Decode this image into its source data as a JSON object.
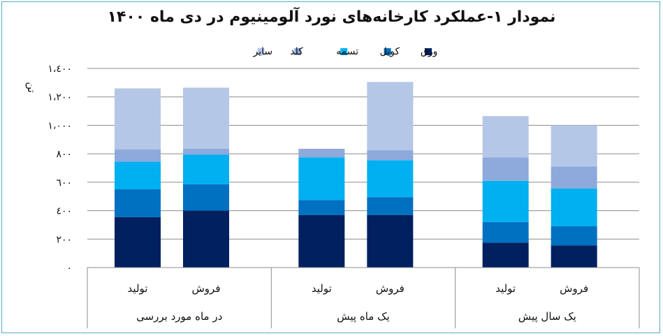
{
  "chart_data": {
    "type": "bar",
    "stacked": true,
    "title": "نمودار ۱-عملکرد کارخانه‌های نورد آلومینیوم در دی ماه ۱۴۰۰",
    "ylabel": "تن",
    "ylim": [
      0,
      1400
    ],
    "yticks": [
      0,
      200,
      400,
      600,
      800,
      1000,
      1200,
      1400
    ],
    "ytick_labels": [
      "٠",
      "٢٠٠",
      "٤٠٠",
      "٦٠٠",
      "٨٠٠",
      "١،٠٠٠",
      "١،٢٠٠",
      "١،٤٠٠"
    ],
    "grid": true,
    "legend_position": "top",
    "groups": [
      {
        "label": "در ماه مورد بررسی",
        "categories": [
          "تولید",
          "فروش"
        ]
      },
      {
        "label": "یک ماه پیش",
        "categories": [
          "تولید",
          "فروش"
        ]
      },
      {
        "label": "یک سال پیش",
        "categories": [
          "تولید",
          "فروش"
        ]
      }
    ],
    "categories": [
      "تولید",
      "فروش",
      "تولید",
      "فروش",
      "تولید",
      "فروش"
    ],
    "series": [
      {
        "name": "ورق",
        "color": "#002060",
        "values": [
          355,
          400,
          370,
          370,
          175,
          155
        ]
      },
      {
        "name": "کویل",
        "color": "#0070C0",
        "values": [
          195,
          185,
          105,
          125,
          145,
          135
        ]
      },
      {
        "name": "تسمه",
        "color": "#00B0F0",
        "values": [
          195,
          210,
          300,
          260,
          290,
          265
        ]
      },
      {
        "name": "کلد",
        "color": "#8EA9DB",
        "values": [
          85,
          40,
          60,
          70,
          165,
          155
        ]
      },
      {
        "name": "سایر",
        "color": "#B4C7E7",
        "values": [
          430,
          430,
          0,
          480,
          290,
          290
        ]
      }
    ]
  }
}
